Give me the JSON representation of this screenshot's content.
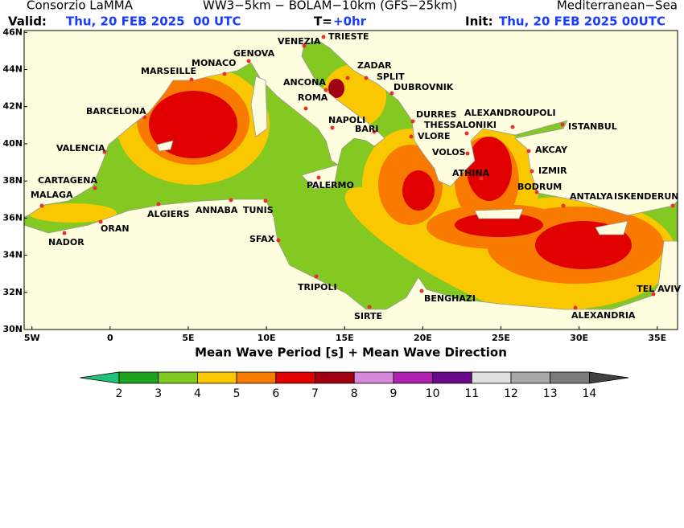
{
  "header": {
    "left": "Consorzio LaMMA",
    "center": "WW3−5km − BOLAM−10km (GFS−25km)",
    "right": "Mediterranean−Sea",
    "valid_label": "Valid:",
    "valid_value": "Thu, 20 FEB 2025  00 UTC",
    "step_label": "T=",
    "step_value": "+0hr",
    "init_label": "Init:",
    "init_value": "Thu, 20 FEB 2025 00UTC"
  },
  "map": {
    "lonlim": [
      -5.5,
      36.3
    ],
    "latlim": [
      30,
      46.1
    ],
    "lon_ticks": [
      {
        "value": -5,
        "label": "5W"
      },
      0,
      {
        "value": 5,
        "label": "5E"
      },
      {
        "value": 10,
        "label": "10E"
      },
      {
        "value": 15,
        "label": "15E"
      },
      {
        "value": 20,
        "label": "20E"
      },
      {
        "value": 25,
        "label": "25E"
      },
      {
        "value": 30,
        "label": "30E"
      },
      {
        "value": 35,
        "label": "35E"
      }
    ],
    "lat_ticks": [
      {
        "value": 30,
        "label": "30N"
      },
      {
        "value": 32,
        "label": "32N"
      },
      {
        "value": 34,
        "label": "34N"
      },
      {
        "value": 36,
        "label": "36N"
      },
      {
        "value": 38,
        "label": "38N"
      },
      {
        "value": 40,
        "label": "40N"
      },
      {
        "value": 42,
        "label": "42N"
      },
      {
        "value": 44,
        "label": "44N"
      },
      {
        "value": 46,
        "label": "46N"
      }
    ],
    "cities": [
      "VENEZIA",
      "TRIESTE",
      "GENOVA",
      "MONACO",
      "MARSEILLE",
      "ZADAR",
      "SPLIT",
      "ANCONA",
      "DUBROVNIK",
      "ROMA",
      "BARCELONA",
      "DURRES",
      "ALEXANDROUPOLI",
      "THESSALONIKI",
      "NAPOLI",
      "BARI",
      "ISTANBUL",
      "VLORE",
      "VALENCIA",
      "VOLOS",
      "AKCAY",
      "ATHINA",
      "IZMIR",
      "CARTAGENA",
      "PALERMO",
      "BODRUM",
      "ANTALYA",
      "ISKENDERUN",
      "MALAGA",
      "ALGIERS",
      "ANNABA",
      "TUNIS",
      "ORAN",
      "NADOR",
      "SFAX",
      "TRIPOLI",
      "BENGHAZI",
      "TEL AVIV",
      "SIRTE",
      "ALEXANDRIA"
    ]
  },
  "legend": {
    "title": "Mean Wave Period [s] + Mean Wave Direction",
    "levels": [
      2,
      3,
      4,
      5,
      6,
      7,
      8,
      9,
      10,
      11,
      12,
      13,
      14
    ],
    "colors": [
      "#22c07a",
      "#1ea31e",
      "#80c81e",
      "#fac800",
      "#f87a00",
      "#e00000",
      "#a00012",
      "#d888d8",
      "#b020b0",
      "#6a0a8a",
      "#e0e0e0",
      "#a8a8a8",
      "#7a7a7a",
      "#404040"
    ]
  }
}
